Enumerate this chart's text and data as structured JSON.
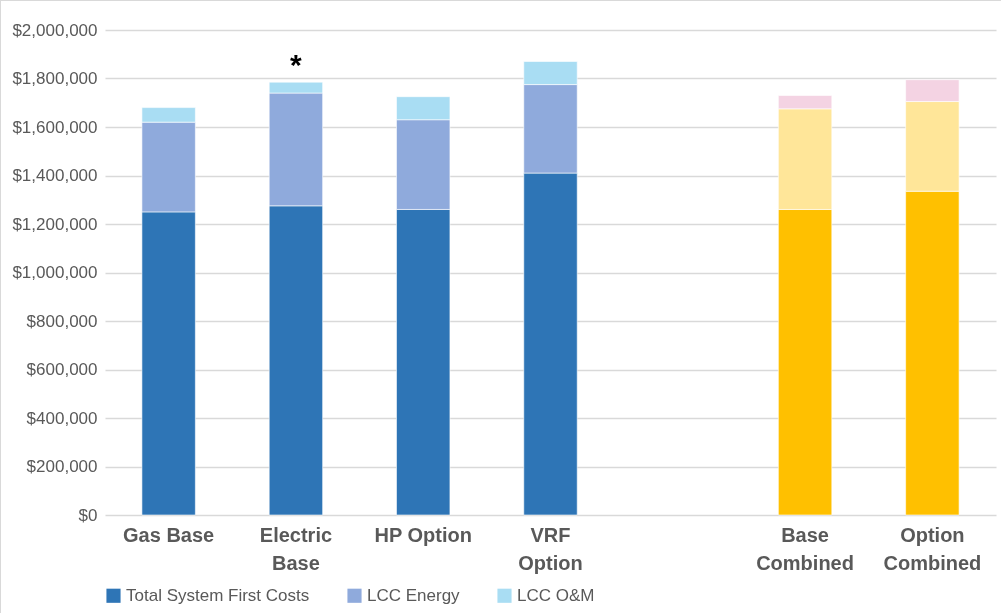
{
  "chart_data": {
    "type": "bar",
    "stacked": true,
    "categories": [
      "Gas Base",
      "Electric\nBase",
      "HP Option",
      "VRF\nOption",
      null,
      "Base\nCombined",
      "Option\nCombined"
    ],
    "series": [
      {
        "name": "Total System First Costs",
        "color": "#2e75b6",
        "colors": [
          "#2e75b6",
          "#2e75b6",
          "#2e75b6",
          "#2e75b6",
          null,
          "#ffc000",
          "#ffc000"
        ],
        "values": [
          1250000,
          1275000,
          1260000,
          1410000,
          null,
          1260000,
          1335000
        ]
      },
      {
        "name": "LCC Energy",
        "color": "#8faadc",
        "colors": [
          "#8faadc",
          "#8faadc",
          "#8faadc",
          "#8faadc",
          null,
          "#ffe699",
          "#ffe699"
        ],
        "values": [
          370000,
          465000,
          370000,
          365000,
          null,
          415000,
          370000
        ]
      },
      {
        "name": "LCC O&M",
        "color": "#a9ddf3",
        "colors": [
          "#a9ddf3",
          "#a9ddf3",
          "#a9ddf3",
          "#a9ddf3",
          null,
          "#f4d3e3",
          "#f4d3e3"
        ],
        "values": [
          60000,
          45000,
          95000,
          95000,
          null,
          55000,
          90000
        ]
      }
    ],
    "ylim": [
      0,
      2000000
    ],
    "yticks": [
      {
        "value": 0,
        "label": "$0"
      },
      {
        "value": 200000,
        "label": "$200,000"
      },
      {
        "value": 400000,
        "label": "$400,000"
      },
      {
        "value": 600000,
        "label": "$600,000"
      },
      {
        "value": 800000,
        "label": "$800,000"
      },
      {
        "value": 1000000,
        "label": "$1,000,000"
      },
      {
        "value": 1200000,
        "label": "$1,200,000"
      },
      {
        "value": 1400000,
        "label": "$1,400,000"
      },
      {
        "value": 1600000,
        "label": "$1,600,000"
      },
      {
        "value": 1800000,
        "label": "$1,800,000"
      },
      {
        "value": 2000000,
        "label": "$2,000,000"
      }
    ],
    "grid": "y",
    "legend": "bottom",
    "annotations": [
      {
        "text": "*",
        "x": "Electric\nBase",
        "y": 1780000
      }
    ]
  }
}
